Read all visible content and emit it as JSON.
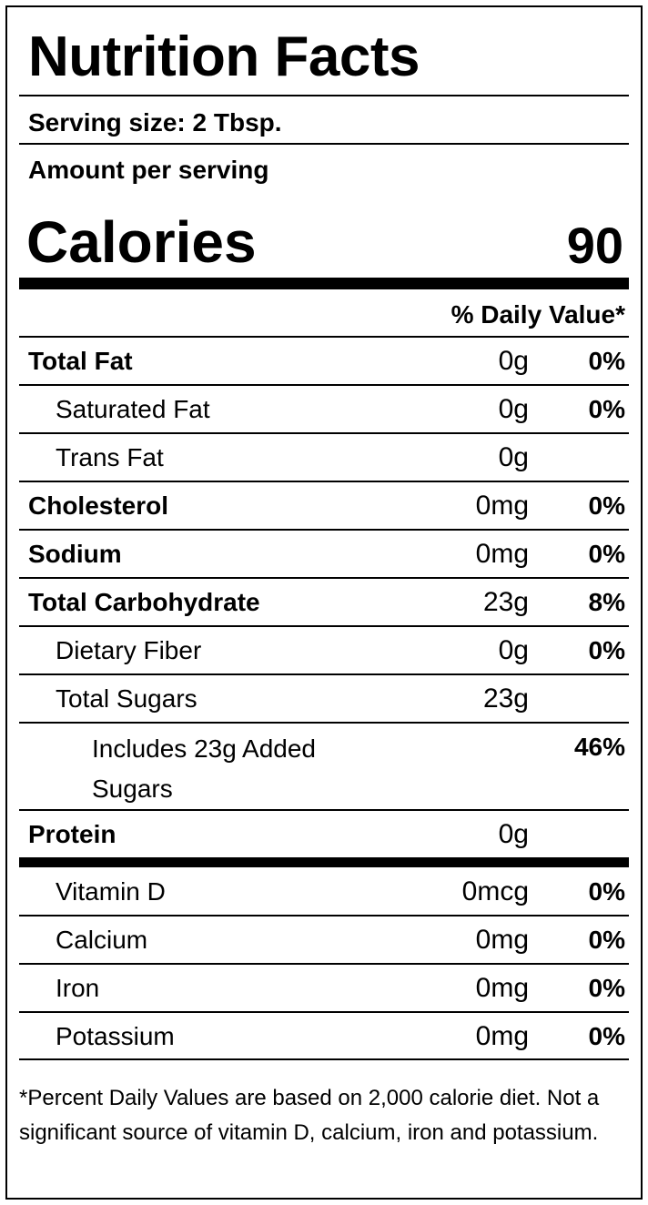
{
  "title": "Nutrition Facts",
  "serving_size": "Serving size: 2 Tbsp.",
  "amount_per_serving": "Amount per serving",
  "calories": {
    "label": "Calories",
    "value": "90"
  },
  "daily_value_header": "% Daily Value*",
  "nutrients": [
    {
      "name": "Total Fat",
      "amount": "0g",
      "dv": "0%"
    },
    {
      "name": "Saturated Fat",
      "amount": "0g",
      "dv": "0%"
    },
    {
      "name": "Trans Fat",
      "amount": "0g",
      "dv": ""
    },
    {
      "name": "Cholesterol",
      "amount": "0mg",
      "dv": "0%"
    },
    {
      "name": "Sodium",
      "amount": "0mg",
      "dv": "0%"
    },
    {
      "name": "Total Carbohydrate",
      "amount": "23g",
      "dv": "8%"
    },
    {
      "name": "Dietary Fiber",
      "amount": "0g",
      "dv": "0%"
    },
    {
      "name": "Total Sugars",
      "amount": "23g",
      "dv": ""
    },
    {
      "name": "Includes 23g Added Sugars",
      "amount": "",
      "dv": "46%"
    },
    {
      "name": "Protein",
      "amount": "0g",
      "dv": ""
    }
  ],
  "vitamins": [
    {
      "name": "Vitamin D",
      "amount": "0mcg",
      "dv": "0%"
    },
    {
      "name": "Calcium",
      "amount": "0mg",
      "dv": "0%"
    },
    {
      "name": "Iron",
      "amount": "0mg",
      "dv": "0%"
    },
    {
      "name": "Potassium",
      "amount": "0mg",
      "dv": "0%"
    }
  ],
  "footnote": "*Percent Daily Values are based on 2,000 calorie diet. Not a significant source of vitamin D, calcium, iron and potassium."
}
